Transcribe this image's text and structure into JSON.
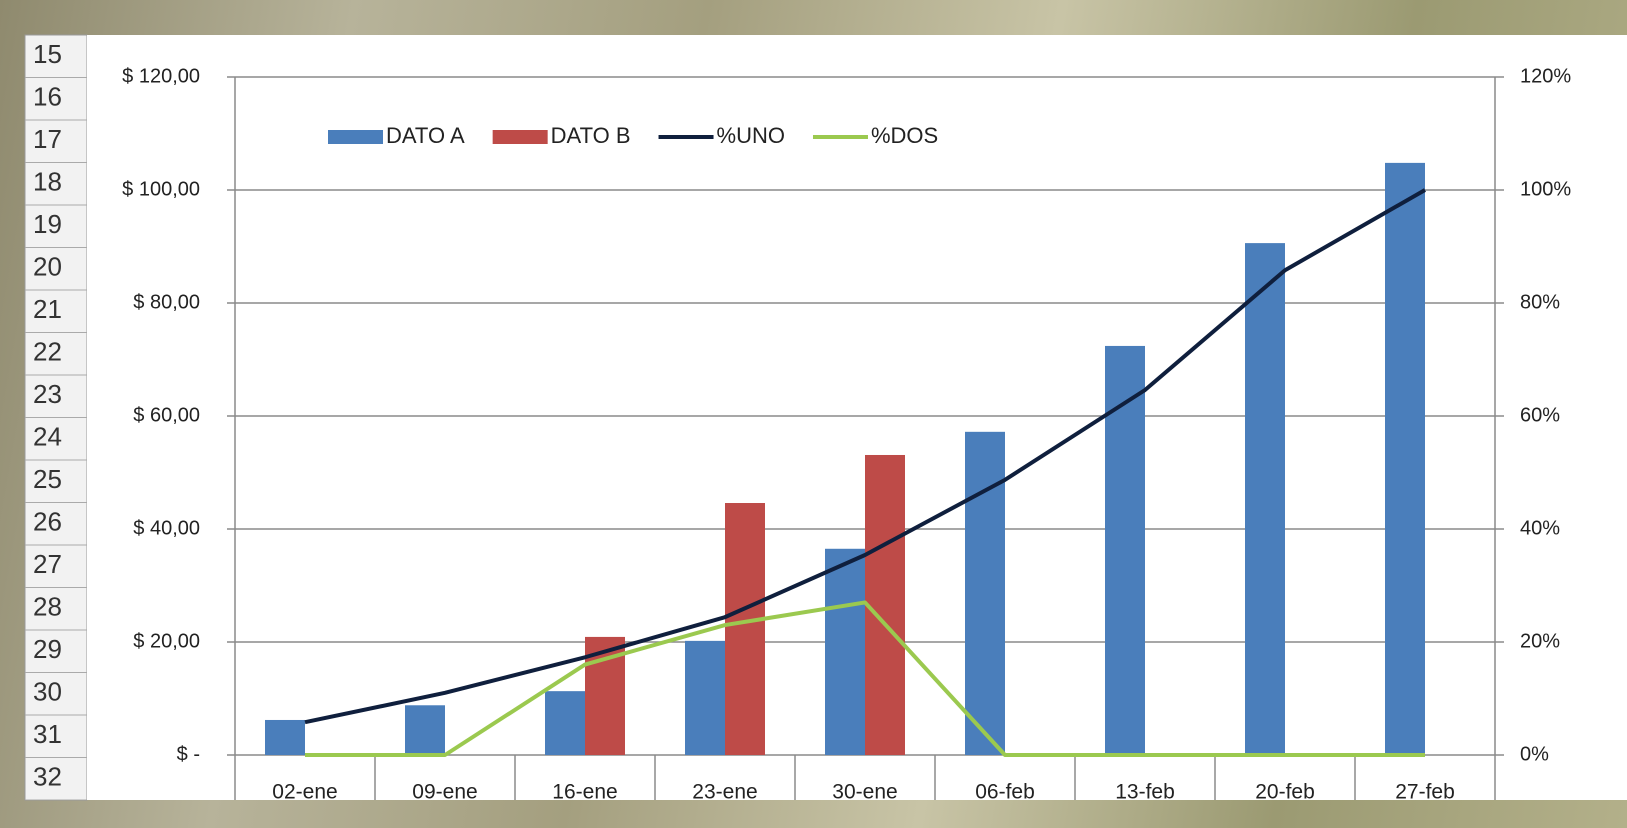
{
  "row_headers": [
    "15",
    "16",
    "17",
    "18",
    "19",
    "20",
    "21",
    "22",
    "23",
    "24",
    "25",
    "26",
    "27",
    "28",
    "29",
    "30",
    "31",
    "32"
  ],
  "chart_data": {
    "type": "bar-line",
    "categories": [
      "02-ene",
      "09-ene",
      "16-ene",
      "23-ene",
      "30-ene",
      "06-feb",
      "13-feb",
      "20-feb",
      "27-feb"
    ],
    "series": [
      {
        "name": "DATO A",
        "type": "bar",
        "color": "#4a7ebb",
        "values": [
          6.2,
          8.8,
          11.3,
          20.2,
          36.5,
          57.2,
          72.4,
          90.6,
          104.8
        ]
      },
      {
        "name": "DATO B",
        "type": "bar",
        "color": "#be4b48",
        "values": [
          null,
          null,
          20.9,
          44.6,
          53.1,
          null,
          null,
          null,
          null
        ]
      },
      {
        "name": "%UNO",
        "type": "line",
        "axis": "y2",
        "color": "#0f1f3d",
        "values": [
          5.8,
          11,
          17.3,
          24.4,
          35.4,
          48.7,
          64.6,
          85.8,
          100
        ]
      },
      {
        "name": "%DOS",
        "type": "line",
        "axis": "y2",
        "color": "#9bc94f",
        "values": [
          0,
          0,
          16,
          23,
          27,
          0,
          0,
          0,
          0
        ]
      }
    ],
    "ylim": [
      0,
      120
    ],
    "yticks": [
      {
        "value": 0,
        "label": "$ -"
      },
      {
        "value": 20,
        "label": "$ 20,00"
      },
      {
        "value": 40,
        "label": "$ 40,00"
      },
      {
        "value": 60,
        "label": "$ 60,00"
      },
      {
        "value": 80,
        "label": "$ 80,00"
      },
      {
        "value": 100,
        "label": "$ 100,00"
      },
      {
        "value": 120,
        "label": "$ 120,00"
      }
    ],
    "y2lim": [
      0,
      120
    ],
    "y2ticks": [
      {
        "value": 0,
        "label": "0%"
      },
      {
        "value": 20,
        "label": "20%"
      },
      {
        "value": 40,
        "label": "40%"
      },
      {
        "value": 60,
        "label": "60%"
      },
      {
        "value": 80,
        "label": "80%"
      },
      {
        "value": 100,
        "label": "100%"
      },
      {
        "value": 120,
        "label": "120%"
      }
    ],
    "grid": true,
    "legend": "top"
  }
}
